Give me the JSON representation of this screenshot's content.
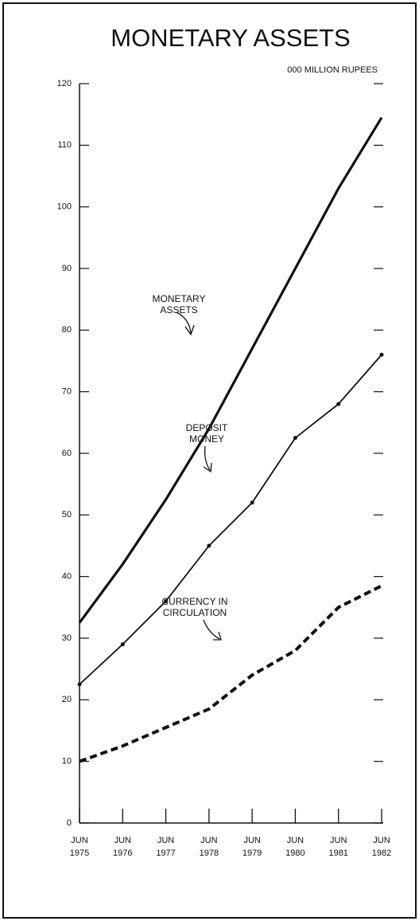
{
  "chart_data": {
    "type": "line",
    "title": "MONETARY ASSETS",
    "subtitle": "000 MILLION RUPEES",
    "categories": [
      "JUN\n1975",
      "JUN\n1976",
      "JUN\n1977",
      "JUN\n1978",
      "JUN\n1979",
      "JUN\n1980",
      "JUN\n1981",
      "JUN\n1982"
    ],
    "series": [
      {
        "name": "MONETARY\nASSETS",
        "color": "#111111",
        "style": "solid",
        "values": [
          32.5,
          42,
          52.5,
          64,
          77,
          90,
          103,
          114.5
        ]
      },
      {
        "name": "DEPOSIT\nMONEY",
        "color": "#111111",
        "style": "dotted",
        "values": [
          22.5,
          29,
          36,
          45,
          52,
          62.5,
          68,
          76
        ]
      },
      {
        "name": "CURRENCY IN\nCIRCULATION",
        "color": "#111111",
        "style": "dashed",
        "values": [
          10,
          12.5,
          15.5,
          18.5,
          24,
          28,
          35,
          38.5
        ]
      }
    ],
    "ylim": [
      0,
      120
    ],
    "yticks": [
      0,
      10,
      20,
      30,
      40,
      50,
      60,
      70,
      80,
      90,
      100,
      110,
      120
    ]
  }
}
